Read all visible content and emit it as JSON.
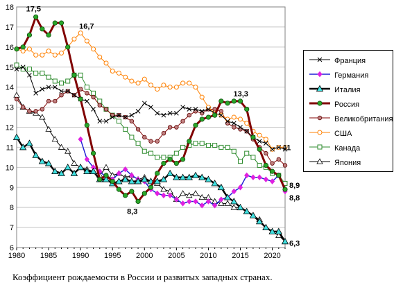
{
  "caption": "Коэффициент рождаемости в России и развитых западных странах.",
  "chart_data": {
    "type": "line",
    "x_ticks": [
      1980,
      1985,
      1990,
      1995,
      2000,
      2005,
      2010,
      2015,
      2020
    ],
    "y_ticks": [
      6,
      7,
      8,
      9,
      10,
      11,
      12,
      13,
      14,
      15,
      16,
      17,
      18
    ],
    "xlim": [
      1980,
      2022
    ],
    "ylim": [
      6,
      18
    ],
    "grid": "horizontal",
    "legend_position": "right",
    "annotations": [
      {
        "text": "17,5",
        "x": 1983,
        "y": 17.5
      },
      {
        "text": "16,7",
        "x": 1990,
        "y": 16.7
      },
      {
        "text": "13,3",
        "x": 2015,
        "y": 13.3
      },
      {
        "text": "11",
        "x": 2021,
        "y": 11
      },
      {
        "text": "8,9",
        "x": 2022,
        "y": 8.9
      },
      {
        "text": "8,8",
        "x": 2022,
        "y": 8.8
      },
      {
        "text": "8,3",
        "x": 1999,
        "y": 8.3
      },
      {
        "text": "6,3",
        "x": 2022,
        "y": 6.3
      }
    ],
    "series": [
      {
        "name": "Франция",
        "color": "#000000",
        "marker": "x",
        "width": 1,
        "x": [
          1980,
          1981,
          1982,
          1983,
          1984,
          1985,
          1986,
          1987,
          1988,
          1989,
          1990,
          1991,
          1992,
          1993,
          1994,
          1995,
          1996,
          1997,
          1998,
          1999,
          2000,
          2001,
          2002,
          2003,
          2004,
          2005,
          2006,
          2007,
          2008,
          2009,
          2010,
          2011,
          2012,
          2013,
          2014,
          2015,
          2016,
          2017,
          2018,
          2019,
          2020,
          2021,
          2022
        ],
        "values": [
          14.9,
          15.0,
          14.6,
          13.7,
          13.9,
          14.0,
          14.0,
          13.8,
          13.8,
          13.6,
          13.4,
          13.3,
          12.9,
          12.3,
          12.3,
          12.5,
          12.6,
          12.5,
          12.6,
          12.8,
          13.2,
          13.0,
          12.7,
          12.6,
          12.7,
          12.7,
          13.0,
          12.9,
          12.9,
          12.8,
          12.9,
          12.7,
          12.6,
          12.3,
          12.2,
          12.0,
          11.8,
          11.5,
          11.3,
          11.2,
          10.9,
          11.0,
          10.9
        ]
      },
      {
        "name": "Германия",
        "color": "#1f1fd6",
        "marker": "diamond",
        "width": 1.5,
        "x": [
          1990,
          1991,
          1992,
          1993,
          1994,
          1995,
          1996,
          1997,
          1998,
          1999,
          2000,
          2001,
          2002,
          2003,
          2004,
          2005,
          2006,
          2007,
          2008,
          2009,
          2010,
          2011,
          2012,
          2013,
          2014,
          2015,
          2016,
          2017,
          2018,
          2019,
          2020,
          2021,
          2022
        ],
        "values": [
          11.4,
          10.4,
          10.0,
          9.8,
          9.5,
          9.4,
          9.7,
          9.9,
          9.6,
          9.4,
          9.3,
          8.9,
          8.7,
          8.6,
          8.6,
          8.4,
          8.2,
          8.3,
          8.3,
          8.1,
          8.3,
          8.1,
          8.4,
          8.5,
          8.8,
          9.0,
          9.6,
          9.5,
          9.5,
          9.4,
          9.3,
          9.6,
          8.8
        ]
      },
      {
        "name": "Италия",
        "color": "#000000",
        "marker": "triangle-cyan",
        "width": 2.5,
        "x": [
          1980,
          1981,
          1982,
          1983,
          1984,
          1985,
          1986,
          1987,
          1988,
          1989,
          1990,
          1991,
          1992,
          1993,
          1994,
          1995,
          1996,
          1997,
          1998,
          1999,
          2000,
          2001,
          2002,
          2003,
          2004,
          2005,
          2006,
          2007,
          2008,
          2009,
          2010,
          2011,
          2012,
          2013,
          2014,
          2015,
          2016,
          2017,
          2018,
          2019,
          2020,
          2021,
          2022
        ],
        "values": [
          11.5,
          11.0,
          11.2,
          10.6,
          10.3,
          10.2,
          9.8,
          9.7,
          10.0,
          9.7,
          10.0,
          9.8,
          9.8,
          9.4,
          9.4,
          9.2,
          9.3,
          9.4,
          9.3,
          9.3,
          9.4,
          9.3,
          9.3,
          9.4,
          9.7,
          9.5,
          9.5,
          9.5,
          9.6,
          9.5,
          9.4,
          9.2,
          9.0,
          8.5,
          8.3,
          8.0,
          7.8,
          7.6,
          7.3,
          7.0,
          6.8,
          6.8,
          6.3
        ]
      },
      {
        "name": "Россия",
        "color": "#800000",
        "marker": "circle-green",
        "width": 3,
        "x": [
          1980,
          1981,
          1982,
          1983,
          1984,
          1985,
          1986,
          1987,
          1988,
          1989,
          1990,
          1991,
          1992,
          1993,
          1994,
          1995,
          1996,
          1997,
          1998,
          1999,
          2000,
          2001,
          2002,
          2003,
          2004,
          2005,
          2006,
          2007,
          2008,
          2009,
          2010,
          2011,
          2012,
          2013,
          2014,
          2015,
          2016,
          2017,
          2018,
          2019,
          2020,
          2021,
          2022
        ],
        "values": [
          15.9,
          16.0,
          16.6,
          17.5,
          16.9,
          16.6,
          17.2,
          17.2,
          16.0,
          14.6,
          13.4,
          12.1,
          10.7,
          9.4,
          9.6,
          9.3,
          8.9,
          8.6,
          8.8,
          8.3,
          8.7,
          9.0,
          9.7,
          10.2,
          10.4,
          10.2,
          10.4,
          11.3,
          12.1,
          12.4,
          12.5,
          12.6,
          13.3,
          13.2,
          13.3,
          13.3,
          12.9,
          11.5,
          10.9,
          10.1,
          9.8,
          9.6,
          8.9
        ]
      },
      {
        "name": "Великобритания",
        "color": "#800000",
        "marker": "circle-brown",
        "width": 1,
        "x": [
          1980,
          1981,
          1982,
          1983,
          1984,
          1985,
          1986,
          1987,
          1988,
          1989,
          1990,
          1991,
          1992,
          1993,
          1994,
          1995,
          1996,
          1997,
          1998,
          1999,
          2000,
          2001,
          2002,
          2003,
          2004,
          2005,
          2006,
          2007,
          2008,
          2009,
          2010,
          2011,
          2012,
          2013,
          2014,
          2015,
          2016,
          2017,
          2018,
          2019,
          2020,
          2021,
          2022
        ],
        "values": [
          13.4,
          13.0,
          12.8,
          12.8,
          12.9,
          13.3,
          13.3,
          13.6,
          13.8,
          13.6,
          13.9,
          13.7,
          13.5,
          13.1,
          12.9,
          12.6,
          12.6,
          12.5,
          12.3,
          11.9,
          11.5,
          11.3,
          11.3,
          11.7,
          12.0,
          12.0,
          12.3,
          12.6,
          12.8,
          12.7,
          12.9,
          12.9,
          12.8,
          12.2,
          12.0,
          11.9,
          11.8,
          11.4,
          11.0,
          10.7,
          10.2,
          10.4,
          10.1
        ]
      },
      {
        "name": "США",
        "color": "#ff8000",
        "marker": "circle-orange",
        "width": 1,
        "x": [
          1980,
          1981,
          1982,
          1983,
          1984,
          1985,
          1986,
          1987,
          1988,
          1989,
          1990,
          1991,
          1992,
          1993,
          1994,
          1995,
          1996,
          1997,
          1998,
          1999,
          2000,
          2001,
          2002,
          2003,
          2004,
          2005,
          2006,
          2007,
          2008,
          2009,
          2010,
          2011,
          2012,
          2013,
          2014,
          2015,
          2016,
          2017,
          2018,
          2019,
          2020,
          2021,
          2022
        ],
        "values": [
          15.9,
          15.8,
          15.9,
          15.6,
          15.6,
          15.8,
          15.6,
          15.7,
          16.0,
          16.4,
          16.7,
          16.3,
          15.9,
          15.5,
          15.2,
          14.8,
          14.7,
          14.5,
          14.3,
          14.2,
          14.4,
          14.1,
          13.9,
          14.1,
          14.0,
          14.0,
          14.2,
          14.2,
          14.0,
          13.5,
          13.0,
          12.7,
          12.6,
          12.4,
          12.5,
          12.4,
          12.2,
          11.8,
          11.6,
          11.4,
          10.9,
          11.0,
          11.0
        ]
      },
      {
        "name": "Канада",
        "color": "#2e8b2e",
        "marker": "square",
        "width": 1,
        "x": [
          1980,
          1981,
          1982,
          1983,
          1984,
          1985,
          1986,
          1987,
          1988,
          1989,
          1990,
          1991,
          1992,
          1993,
          1994,
          1995,
          1996,
          1997,
          1998,
          1999,
          2000,
          2001,
          2002,
          2003,
          2004,
          2005,
          2006,
          2007,
          2008,
          2009,
          2010,
          2011,
          2012,
          2013,
          2014,
          2015,
          2016,
          2017,
          2018,
          2019,
          2020,
          2021,
          2022
        ],
        "values": [
          15.1,
          14.9,
          14.9,
          14.7,
          14.7,
          14.5,
          14.3,
          14.2,
          14.3,
          14.6,
          14.6,
          14.0,
          13.7,
          13.3,
          12.9,
          12.6,
          12.3,
          11.9,
          11.5,
          11.2,
          10.8,
          10.7,
          10.5,
          10.5,
          10.5,
          10.7,
          11.0,
          11.1,
          11.2,
          11.2,
          11.1,
          11.1,
          11.0,
          11.0,
          10.8,
          10.3,
          10.7,
          10.5,
          10.1,
          10.0,
          9.7,
          9.6,
          9.2
        ]
      },
      {
        "name": "Япония",
        "color": "#000000",
        "marker": "triangle-white",
        "width": 1,
        "x": [
          1980,
          1981,
          1982,
          1983,
          1984,
          1985,
          1986,
          1987,
          1988,
          1989,
          1990,
          1991,
          1992,
          1993,
          1994,
          1995,
          1996,
          1997,
          1998,
          1999,
          2000,
          2001,
          2002,
          2003,
          2004,
          2005,
          2006,
          2007,
          2008,
          2009,
          2010,
          2011,
          2012,
          2013,
          2014,
          2015,
          2016,
          2017,
          2018,
          2019,
          2020,
          2021,
          2022
        ],
        "values": [
          13.6,
          13.0,
          12.8,
          12.7,
          12.5,
          11.9,
          11.4,
          11.0,
          10.8,
          10.2,
          10.0,
          9.9,
          9.8,
          9.6,
          10.0,
          9.6,
          9.7,
          9.5,
          9.6,
          9.4,
          9.5,
          9.3,
          9.2,
          8.9,
          8.8,
          8.4,
          8.7,
          8.6,
          8.7,
          8.5,
          8.5,
          8.3,
          8.2,
          8.2,
          8.0,
          8.0,
          7.8,
          7.6,
          7.4,
          7.0,
          6.8,
          6.6,
          6.3
        ]
      }
    ]
  }
}
